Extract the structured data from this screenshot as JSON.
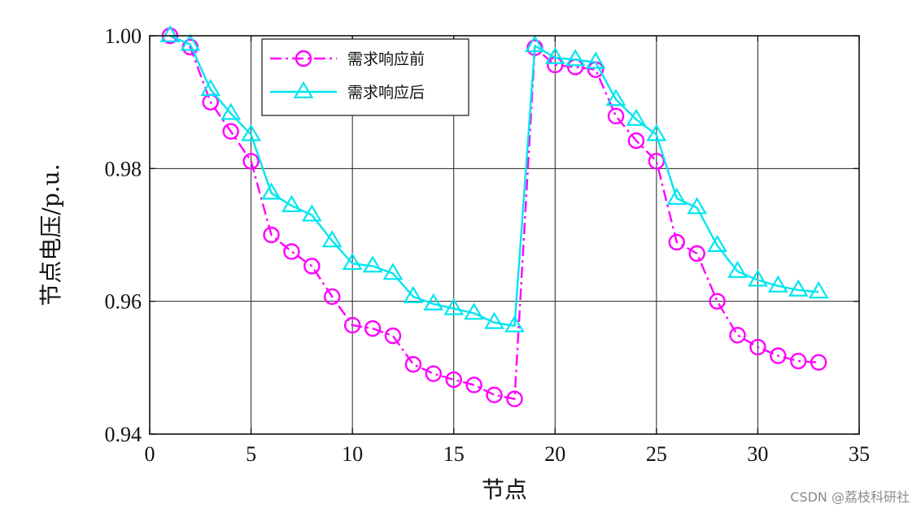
{
  "chart_data": {
    "type": "line",
    "xlabel": "节点",
    "ylabel": "节点电压/p.u.",
    "xlim": [
      0,
      35
    ],
    "ylim": [
      0.94,
      1.0
    ],
    "x_ticks": [
      0,
      5,
      10,
      15,
      20,
      25,
      30,
      35
    ],
    "x_tick_labels": [
      "0",
      "5",
      "10",
      "15",
      "20",
      "25",
      "30",
      "35"
    ],
    "y_ticks": [
      0.94,
      0.96,
      0.98,
      1.0
    ],
    "y_tick_labels": [
      "0.94",
      "0.96",
      "0.98",
      "1.00"
    ],
    "grid": true,
    "legend_position": "top-left",
    "series": [
      {
        "name": "需求响应前",
        "color": "#ff00ff",
        "line_style": "dash-dot",
        "marker": "circle",
        "x": [
          1,
          2,
          3,
          4,
          5,
          6,
          7,
          8,
          9,
          10,
          11,
          12,
          13,
          14,
          15,
          16,
          17,
          18,
          19,
          20,
          21,
          22,
          23,
          24,
          25,
          26,
          27,
          28,
          29,
          30,
          31,
          32,
          33
        ],
        "values": [
          1.0,
          0.9983,
          0.99,
          0.9856,
          0.9811,
          0.97,
          0.9675,
          0.9653,
          0.9607,
          0.9564,
          0.9559,
          0.9548,
          0.9505,
          0.9491,
          0.9482,
          0.9474,
          0.9459,
          0.9453,
          0.9982,
          0.9956,
          0.9953,
          0.9949,
          0.9879,
          0.9842,
          0.9811,
          0.9689,
          0.9672,
          0.96,
          0.9549,
          0.9531,
          0.9518,
          0.951,
          0.9508
        ]
      },
      {
        "name": "需求响应后",
        "color": "#00e5f0",
        "line_style": "solid",
        "marker": "triangle",
        "x": [
          1,
          2,
          3,
          4,
          5,
          6,
          7,
          8,
          9,
          10,
          11,
          12,
          13,
          14,
          15,
          16,
          17,
          18,
          19,
          20,
          21,
          22,
          23,
          24,
          25,
          26,
          27,
          28,
          29,
          30,
          31,
          32,
          33
        ],
        "values": [
          1.0,
          0.9987,
          0.9919,
          0.9883,
          0.9851,
          0.9763,
          0.9744,
          0.973,
          0.9691,
          0.9657,
          0.9653,
          0.9642,
          0.9607,
          0.9596,
          0.9589,
          0.9582,
          0.9568,
          0.9563,
          0.9985,
          0.9967,
          0.9964,
          0.996,
          0.9904,
          0.9874,
          0.9851,
          0.9755,
          0.9741,
          0.9684,
          0.9645,
          0.9632,
          0.9623,
          0.9617,
          0.9614
        ]
      }
    ]
  },
  "watermark": "CSDN @荔枝科研社"
}
